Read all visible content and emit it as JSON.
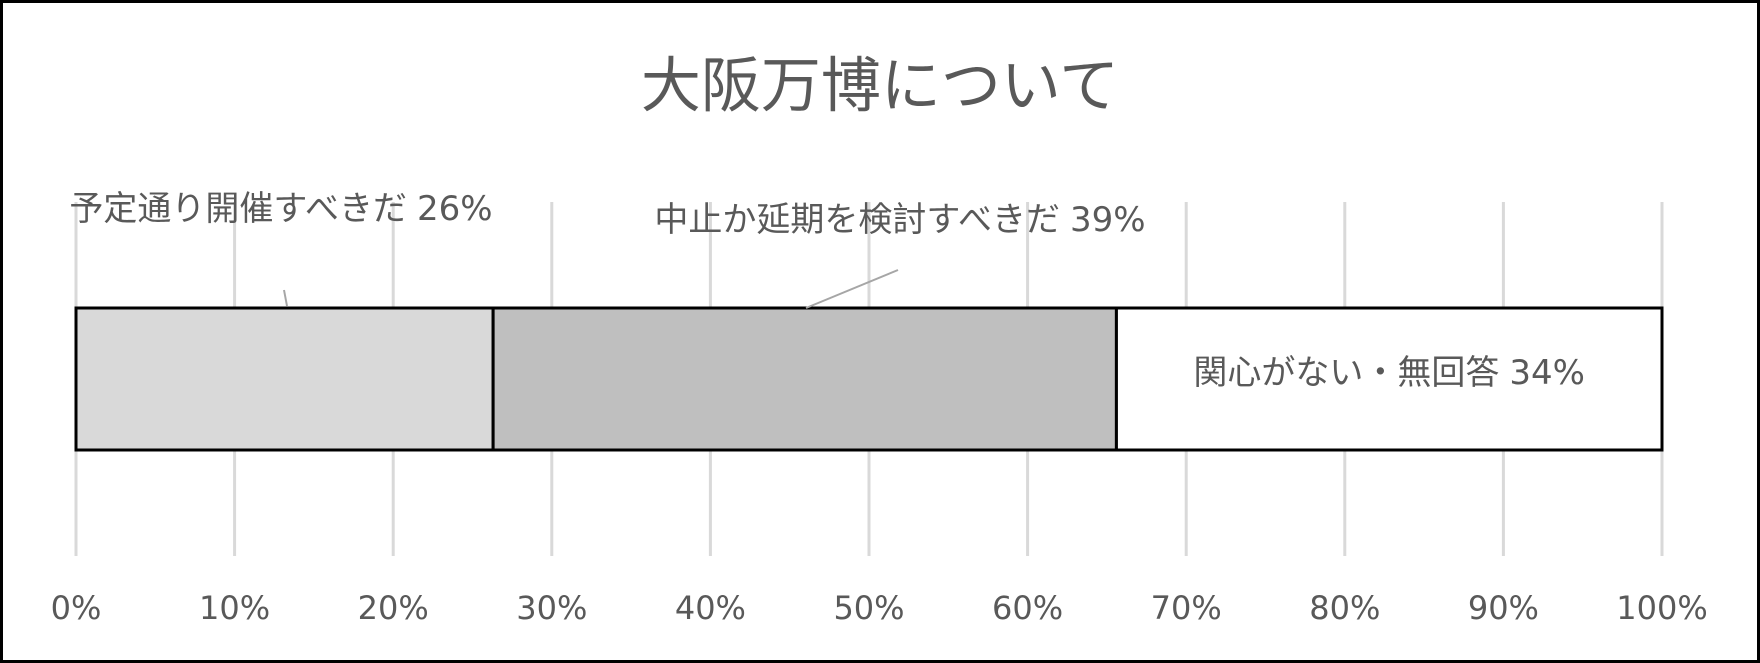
{
  "chart_data": {
    "type": "stacked-bar-horizontal",
    "title": "大阪万博について",
    "series": [
      {
        "name": "予定通り開催すべきだ",
        "color": "#d9d9d9",
        "values": [
          26.3
        ],
        "value_labels": [
          "26%"
        ]
      },
      {
        "name": "中止か延期を検討すべきだ",
        "color": "#bfbfbf",
        "values": [
          39.3
        ],
        "value_labels": [
          "39%"
        ]
      },
      {
        "name": "関心がない・無回答",
        "color": "#ffffff",
        "values": [
          34.4
        ],
        "value_labels": [
          "34%"
        ]
      }
    ],
    "xlim": [
      0,
      100
    ],
    "xticks": [
      {
        "value": 0,
        "label": "0%"
      },
      {
        "value": 10,
        "label": "10%"
      },
      {
        "value": 20,
        "label": "20%"
      },
      {
        "value": 30,
        "label": "30%"
      },
      {
        "value": 40,
        "label": "40%"
      },
      {
        "value": 50,
        "label": "50%"
      },
      {
        "value": 60,
        "label": "60%"
      },
      {
        "value": 70,
        "label": "70%"
      },
      {
        "value": 80,
        "label": "80%"
      },
      {
        "value": 90,
        "label": "90%"
      },
      {
        "value": 100,
        "label": "100%"
      }
    ],
    "grid": true
  }
}
